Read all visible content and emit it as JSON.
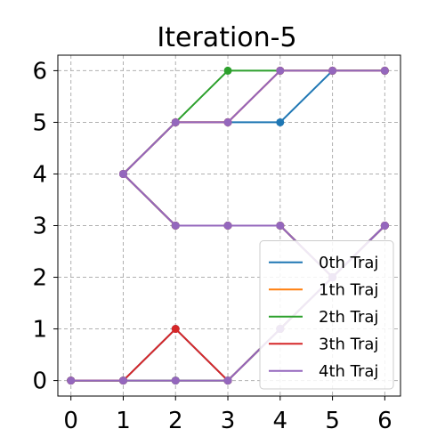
{
  "chart_data": {
    "type": "line",
    "title": "Iteration-5",
    "xlabel": "",
    "ylabel": "",
    "xlim": [
      -0.25,
      6.3
    ],
    "ylim": [
      -0.3,
      6.3
    ],
    "xticks": [
      0,
      1,
      2,
      3,
      4,
      5,
      6
    ],
    "yticks": [
      0,
      1,
      2,
      3,
      4,
      5,
      6
    ],
    "grid": true,
    "legend_position": "lower-right",
    "series": [
      {
        "name": "0th Traj",
        "color": "#1f77b4",
        "paths": [
          [
            [
              0,
              0
            ],
            [
              1,
              0
            ],
            [
              2,
              0
            ],
            [
              3,
              0
            ],
            [
              4,
              1
            ],
            [
              5,
              2
            ],
            [
              6,
              3
            ]
          ],
          [
            [
              0,
              0
            ],
            [
              1,
              0
            ],
            [
              2,
              1
            ],
            [
              3,
              0
            ],
            [
              4,
              1
            ],
            [
              5,
              2
            ],
            [
              6,
              3
            ]
          ],
          [
            [
              1,
              4
            ],
            [
              2,
              3
            ],
            [
              3,
              3
            ],
            [
              4,
              3
            ],
            [
              5,
              2
            ],
            [
              6,
              3
            ]
          ],
          [
            [
              1,
              4
            ],
            [
              2,
              5
            ],
            [
              3,
              5
            ],
            [
              4,
              5
            ],
            [
              5,
              6
            ],
            [
              6,
              6
            ]
          ]
        ]
      },
      {
        "name": "1th Traj",
        "color": "#ff7f0e",
        "paths": [
          [
            [
              0,
              0
            ],
            [
              1,
              0
            ],
            [
              2,
              0
            ],
            [
              3,
              0
            ],
            [
              4,
              1
            ],
            [
              5,
              2
            ],
            [
              6,
              3
            ]
          ],
          [
            [
              1,
              4
            ],
            [
              2,
              3
            ],
            [
              3,
              3
            ],
            [
              4,
              3
            ],
            [
              5,
              2
            ],
            [
              6,
              3
            ]
          ],
          [
            [
              1,
              4
            ],
            [
              2,
              5
            ],
            [
              3,
              5
            ],
            [
              4,
              6
            ],
            [
              5,
              6
            ],
            [
              6,
              6
            ]
          ]
        ]
      },
      {
        "name": "2th Traj",
        "color": "#2ca02c",
        "paths": [
          [
            [
              0,
              0
            ],
            [
              1,
              0
            ],
            [
              2,
              0
            ],
            [
              3,
              0
            ],
            [
              4,
              1
            ],
            [
              5,
              2
            ],
            [
              6,
              3
            ]
          ],
          [
            [
              1,
              4
            ],
            [
              2,
              3
            ],
            [
              3,
              3
            ],
            [
              4,
              3
            ],
            [
              5,
              2
            ],
            [
              6,
              3
            ]
          ],
          [
            [
              1,
              4
            ],
            [
              2,
              5
            ],
            [
              3,
              6
            ],
            [
              4,
              6
            ],
            [
              5,
              6
            ],
            [
              6,
              6
            ]
          ]
        ]
      },
      {
        "name": "3th Traj",
        "color": "#d62728",
        "paths": [
          [
            [
              0,
              0
            ],
            [
              1,
              0
            ],
            [
              2,
              1
            ],
            [
              3,
              0
            ],
            [
              4,
              1
            ],
            [
              5,
              2
            ],
            [
              6,
              3
            ]
          ],
          [
            [
              1,
              4
            ],
            [
              2,
              3
            ],
            [
              3,
              3
            ],
            [
              4,
              3
            ],
            [
              5,
              2
            ],
            [
              6,
              3
            ]
          ],
          [
            [
              1,
              4
            ],
            [
              2,
              5
            ],
            [
              3,
              5
            ],
            [
              4,
              6
            ],
            [
              5,
              6
            ],
            [
              6,
              6
            ]
          ]
        ]
      },
      {
        "name": "4th Traj",
        "color": "#9467bd",
        "paths": [
          [
            [
              0,
              0
            ],
            [
              1,
              0
            ],
            [
              2,
              0
            ],
            [
              3,
              0
            ],
            [
              4,
              1
            ],
            [
              5,
              2
            ],
            [
              6,
              3
            ]
          ],
          [
            [
              1,
              4
            ],
            [
              2,
              3
            ],
            [
              3,
              3
            ],
            [
              4,
              3
            ],
            [
              5,
              2
            ],
            [
              6,
              3
            ]
          ],
          [
            [
              1,
              4
            ],
            [
              2,
              5
            ],
            [
              3,
              5
            ],
            [
              4,
              6
            ],
            [
              5,
              6
            ],
            [
              6,
              6
            ]
          ]
        ]
      }
    ]
  }
}
